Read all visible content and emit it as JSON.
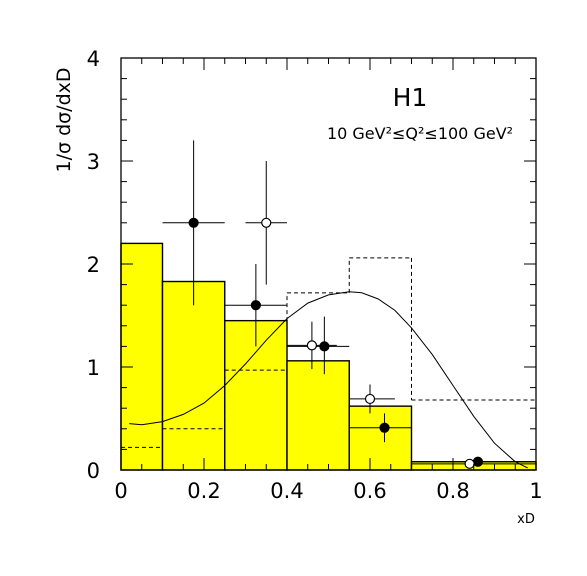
{
  "chart_data": {
    "type": "bar",
    "title": "",
    "annotations": {
      "experiment": "H1",
      "kinematic_range": "10 GeV²≤Q²≤100 GeV²"
    },
    "xlabel": "xD",
    "ylabel": "1/σ dσ/dxD",
    "xlim": [
      0,
      1
    ],
    "ylim": [
      0,
      4
    ],
    "x_ticks": [
      "0",
      "0.2",
      "0.4",
      "0.6",
      "0.8",
      "1"
    ],
    "y_ticks": [
      "0",
      "1",
      "2",
      "3",
      "4"
    ],
    "grid": false,
    "colors": {
      "filled_histogram": "#ffff00",
      "lines": "#000000"
    },
    "series": [
      {
        "kind": "filled-histogram",
        "bins": [
          {
            "x0": 0.0,
            "x1": 0.1,
            "y": 2.2
          },
          {
            "x0": 0.1,
            "x1": 0.25,
            "y": 1.83
          },
          {
            "x0": 0.25,
            "x1": 0.4,
            "y": 1.45
          },
          {
            "x0": 0.4,
            "x1": 0.55,
            "y": 1.06
          },
          {
            "x0": 0.55,
            "x1": 0.7,
            "y": 0.62
          },
          {
            "x0": 0.7,
            "x1": 1.0,
            "y": 0.08
          }
        ]
      },
      {
        "kind": "dashed-histogram",
        "bins": [
          {
            "x0": 0.0,
            "x1": 0.1,
            "y": 0.22
          },
          {
            "x0": 0.1,
            "x1": 0.25,
            "y": 0.4
          },
          {
            "x0": 0.25,
            "x1": 0.4,
            "y": 0.97
          },
          {
            "x0": 0.4,
            "x1": 0.55,
            "y": 1.72
          },
          {
            "x0": 0.55,
            "x1": 0.7,
            "y": 2.06
          },
          {
            "x0": 0.7,
            "x1": 1.0,
            "y": 0.68
          }
        ]
      },
      {
        "kind": "curve",
        "x": [
          0.02,
          0.05,
          0.1,
          0.15,
          0.2,
          0.25,
          0.3,
          0.35,
          0.4,
          0.45,
          0.5,
          0.55,
          0.58,
          0.62,
          0.66,
          0.7,
          0.75,
          0.8,
          0.85,
          0.9,
          0.95,
          0.98
        ],
        "y": [
          0.45,
          0.44,
          0.47,
          0.54,
          0.65,
          0.82,
          1.03,
          1.26,
          1.47,
          1.62,
          1.7,
          1.73,
          1.72,
          1.66,
          1.55,
          1.38,
          1.12,
          0.82,
          0.52,
          0.26,
          0.08,
          0.02
        ]
      },
      {
        "kind": "points-filled",
        "points": [
          {
            "x": 0.175,
            "y": 2.4,
            "xerr": [
              0.1,
              0.25
            ],
            "yerr": [
              1.6,
              3.2
            ]
          },
          {
            "x": 0.325,
            "y": 1.6,
            "xerr": [
              0.25,
              0.4
            ],
            "yerr": [
              1.2,
              2.0
            ]
          },
          {
            "x": 0.49,
            "y": 1.2,
            "xerr": [
              0.4,
              0.55
            ],
            "yerr": [
              0.93,
              1.49
            ]
          },
          {
            "x": 0.635,
            "y": 0.41,
            "xerr": [
              0.55,
              0.7
            ],
            "yerr": [
              0.27,
              0.55
            ]
          },
          {
            "x": 0.86,
            "y": 0.08,
            "xerr": [
              0.7,
              1.0
            ],
            "yerr": [
              0.06,
              0.1
            ]
          }
        ]
      },
      {
        "kind": "points-open",
        "points": [
          {
            "x": 0.35,
            "y": 2.4,
            "xerr": [
              0.3,
              0.4
            ],
            "yerr": [
              1.8,
              3.0
            ]
          },
          {
            "x": 0.46,
            "y": 1.21,
            "xerr": [
              0.4,
              0.52
            ],
            "yerr": [
              0.98,
              1.44
            ]
          },
          {
            "x": 0.6,
            "y": 0.69,
            "xerr": [
              0.55,
              0.66
            ],
            "yerr": [
              0.55,
              0.83
            ]
          },
          {
            "x": 0.84,
            "y": 0.06,
            "xerr": [
              0.7,
              1.0
            ],
            "yerr": [
              0.04,
              0.08
            ]
          }
        ]
      }
    ]
  }
}
